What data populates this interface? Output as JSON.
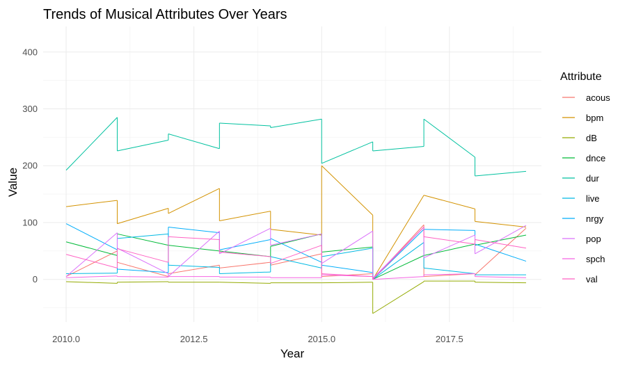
{
  "chart_data": {
    "type": "line",
    "title": "Trends of Musical Attributes Over Years",
    "xlabel": "Year",
    "ylabel": "Value",
    "xlim": [
      2009.55,
      2019.3
    ],
    "ylim": [
      -75,
      445
    ],
    "x_ticks": [
      2010.0,
      2012.5,
      2015.0,
      2017.5
    ],
    "x_tick_labels": [
      "2010.0",
      "2012.5",
      "2015.0",
      "2017.5"
    ],
    "y_ticks": [
      0,
      100,
      200,
      300,
      400
    ],
    "y_tick_labels": [
      "0",
      "100",
      "200",
      "300",
      "400"
    ],
    "grid": true,
    "legend_title": "Attribute",
    "legend_position": "right",
    "series": [
      {
        "name": "acous",
        "color": "#F8766D",
        "segments": [
          [
            [
              2010,
              5
            ],
            [
              2011,
              50
            ]
          ],
          [
            [
              2011,
              30
            ],
            [
              2012,
              5
            ]
          ],
          [
            [
              2012,
              10
            ],
            [
              2013,
              25
            ]
          ],
          [
            [
              2013,
              20
            ],
            [
              2014,
              30
            ]
          ],
          [
            [
              2014,
              25
            ],
            [
              2015,
              45
            ]
          ],
          [
            [
              2015,
              5
            ],
            [
              2016,
              10
            ]
          ],
          [
            [
              2016,
              0
            ],
            [
              2017,
              96
            ]
          ],
          [
            [
              2017,
              5
            ],
            [
              2018,
              10
            ]
          ],
          [
            [
              2018,
              8
            ],
            [
              2019,
              90
            ]
          ]
        ]
      },
      {
        "name": "bpm",
        "color": "#D39200",
        "segments": [
          [
            [
              2010,
              128
            ],
            [
              2011,
              139
            ]
          ],
          [
            [
              2011,
              98
            ],
            [
              2012,
              125
            ]
          ],
          [
            [
              2012,
              116
            ],
            [
              2013,
              160
            ]
          ],
          [
            [
              2013,
              103
            ],
            [
              2014,
              120
            ]
          ],
          [
            [
              2014,
              88
            ],
            [
              2015,
              78
            ]
          ],
          [
            [
              2015,
              200
            ],
            [
              2016,
              113
            ]
          ],
          [
            [
              2016,
              0
            ],
            [
              2017,
              148
            ]
          ],
          [
            [
              2017,
              148
            ],
            [
              2018,
              124
            ]
          ],
          [
            [
              2018,
              102
            ],
            [
              2019,
              92
            ]
          ]
        ]
      },
      {
        "name": "dB",
        "color": "#93AA00",
        "segments": [
          [
            [
              2010,
              -4
            ],
            [
              2011,
              -7
            ]
          ],
          [
            [
              2011,
              -5
            ],
            [
              2012,
              -4
            ]
          ],
          [
            [
              2012,
              -5
            ],
            [
              2013,
              -5
            ]
          ],
          [
            [
              2013,
              -5
            ],
            [
              2014,
              -7
            ]
          ],
          [
            [
              2014,
              -6
            ],
            [
              2015,
              -6
            ]
          ],
          [
            [
              2015,
              -6
            ],
            [
              2016,
              -5
            ]
          ],
          [
            [
              2016,
              -60
            ],
            [
              2017,
              -4
            ]
          ],
          [
            [
              2017,
              -3
            ],
            [
              2018,
              -3
            ]
          ],
          [
            [
              2018,
              -5
            ],
            [
              2019,
              -6
            ]
          ]
        ]
      },
      {
        "name": "dnce",
        "color": "#00BA38",
        "segments": [
          [
            [
              2010,
              66
            ],
            [
              2011,
              42
            ]
          ],
          [
            [
              2011,
              80
            ],
            [
              2012,
              60
            ]
          ],
          [
            [
              2012,
              60
            ],
            [
              2013,
              50
            ]
          ],
          [
            [
              2013,
              50
            ],
            [
              2014,
              40
            ]
          ],
          [
            [
              2014,
              58
            ],
            [
              2015,
              80
            ]
          ],
          [
            [
              2015,
              48
            ],
            [
              2016,
              57
            ]
          ],
          [
            [
              2016,
              0
            ],
            [
              2017,
              42
            ]
          ],
          [
            [
              2017,
              42
            ],
            [
              2018,
              62
            ]
          ],
          [
            [
              2018,
              60
            ],
            [
              2019,
              78
            ]
          ]
        ]
      },
      {
        "name": "dur",
        "color": "#00C19F",
        "segments": [
          [
            [
              2010,
              192
            ],
            [
              2011,
              285
            ]
          ],
          [
            [
              2011,
              226
            ],
            [
              2012,
              245
            ]
          ],
          [
            [
              2012,
              256
            ],
            [
              2013,
              230
            ]
          ],
          [
            [
              2013,
              275
            ],
            [
              2014,
              270
            ]
          ],
          [
            [
              2014,
              267
            ],
            [
              2015,
              282
            ]
          ],
          [
            [
              2015,
              204
            ],
            [
              2016,
              242
            ]
          ],
          [
            [
              2016,
              226
            ],
            [
              2017,
              234
            ]
          ],
          [
            [
              2017,
              282
            ],
            [
              2018,
              215
            ]
          ],
          [
            [
              2018,
              182
            ],
            [
              2019,
              190
            ]
          ]
        ]
      },
      {
        "name": "live",
        "color": "#00B9E3",
        "segments": [
          [
            [
              2010,
              10
            ],
            [
              2011,
              11
            ]
          ],
          [
            [
              2011,
              72
            ],
            [
              2012,
              80
            ]
          ],
          [
            [
              2012,
              25
            ],
            [
              2013,
              21
            ]
          ],
          [
            [
              2013,
              10
            ],
            [
              2014,
              13
            ]
          ],
          [
            [
              2014,
              40
            ],
            [
              2015,
              20
            ]
          ],
          [
            [
              2015,
              40
            ],
            [
              2016,
              55
            ]
          ],
          [
            [
              2016,
              0
            ],
            [
              2017,
              65
            ]
          ],
          [
            [
              2017,
              20
            ],
            [
              2018,
              10
            ]
          ],
          [
            [
              2018,
              8
            ],
            [
              2019,
              8
            ]
          ]
        ]
      },
      {
        "name": "nrgy",
        "color": "#00ADFA",
        "segments": [
          [
            [
              2010,
              98
            ],
            [
              2011,
              52
            ]
          ],
          [
            [
              2011,
              18
            ],
            [
              2012,
              12
            ]
          ],
          [
            [
              2012,
              92
            ],
            [
              2013,
              82
            ]
          ],
          [
            [
              2013,
              52
            ],
            [
              2014,
              70
            ]
          ],
          [
            [
              2014,
              72
            ],
            [
              2015,
              30
            ]
          ],
          [
            [
              2015,
              25
            ],
            [
              2016,
              12
            ]
          ],
          [
            [
              2016,
              0
            ],
            [
              2017,
              88
            ]
          ],
          [
            [
              2017,
              88
            ],
            [
              2018,
              86
            ]
          ],
          [
            [
              2018,
              62
            ],
            [
              2019,
              32
            ]
          ]
        ]
      },
      {
        "name": "pop",
        "color": "#DB72FB",
        "segments": [
          [
            [
              2010,
              5
            ],
            [
              2011,
              82
            ]
          ],
          [
            [
              2011,
              55
            ],
            [
              2012,
              10
            ]
          ],
          [
            [
              2012,
              5
            ],
            [
              2013,
              85
            ]
          ],
          [
            [
              2013,
              45
            ],
            [
              2014,
              90
            ]
          ],
          [
            [
              2014,
              60
            ],
            [
              2015,
              80
            ]
          ],
          [
            [
              2015,
              28
            ],
            [
              2016,
              85
            ]
          ],
          [
            [
              2016,
              2
            ],
            [
              2017,
              92
            ]
          ],
          [
            [
              2017,
              38
            ],
            [
              2018,
              78
            ]
          ],
          [
            [
              2018,
              45
            ],
            [
              2019,
              95
            ]
          ]
        ]
      },
      {
        "name": "spch",
        "color": "#F564E3",
        "segments": [
          [
            [
              2010,
              3
            ],
            [
              2011,
              6
            ]
          ],
          [
            [
              2011,
              5
            ],
            [
              2012,
              4
            ]
          ],
          [
            [
              2012,
              5
            ],
            [
              2013,
              5
            ]
          ],
          [
            [
              2013,
              4
            ],
            [
              2014,
              4
            ]
          ],
          [
            [
              2014,
              3
            ],
            [
              2015,
              3
            ]
          ],
          [
            [
              2015,
              8
            ],
            [
              2016,
              5
            ]
          ],
          [
            [
              2016,
              0
            ],
            [
              2017,
              5
            ]
          ],
          [
            [
              2017,
              8
            ],
            [
              2018,
              10
            ]
          ],
          [
            [
              2018,
              5
            ],
            [
              2019,
              3
            ]
          ]
        ]
      },
      {
        "name": "val",
        "color": "#FF61C3",
        "segments": [
          [
            [
              2010,
              44
            ],
            [
              2011,
              20
            ]
          ],
          [
            [
              2011,
              54
            ],
            [
              2012,
              30
            ]
          ],
          [
            [
              2012,
              75
            ],
            [
              2013,
              70
            ]
          ],
          [
            [
              2013,
              48
            ],
            [
              2014,
              40
            ]
          ],
          [
            [
              2014,
              28
            ],
            [
              2015,
              60
            ]
          ],
          [
            [
              2015,
              10
            ],
            [
              2016,
              5
            ]
          ],
          [
            [
              2016,
              0
            ],
            [
              2017,
              92
            ]
          ],
          [
            [
              2017,
              75
            ],
            [
              2018,
              62
            ]
          ],
          [
            [
              2018,
              70
            ],
            [
              2019,
              55
            ]
          ]
        ]
      }
    ]
  }
}
